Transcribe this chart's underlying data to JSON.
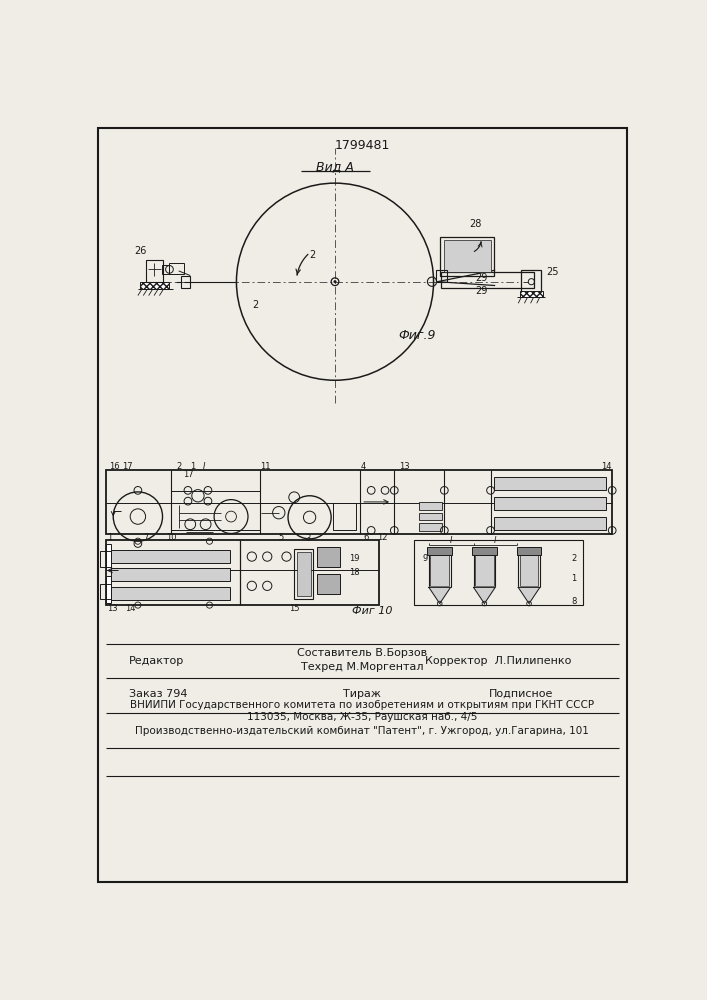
{
  "patent_number": "1799481",
  "bg_color": "#f0ede6",
  "line_color": "#1a1a1a",
  "fig9_label": "Фиг.9",
  "vida_label": "Вид А",
  "fig10_label": "Фиг 10",
  "editor_line": "Редактор",
  "composer": "Составитель В.Борзов",
  "techred": "Техред М.Моргентал",
  "corrector": "Корректор  Л.Пилипенко",
  "order_line": "Заказ 794",
  "tirazh": "Тираж",
  "podpisnoe": "Подписное",
  "vniiipi_line1": "ВНИИПИ Государственного комитета по изобретениям и открытиям при ГКНТ СССР",
  "vniiipi_line2": "113035, Москва, Ж-35, Раушская наб., 4/5",
  "publisher_line": "Производственно-издательский комбинат \"Патент\", г. Ужгород, ул.Гагарина, 101"
}
